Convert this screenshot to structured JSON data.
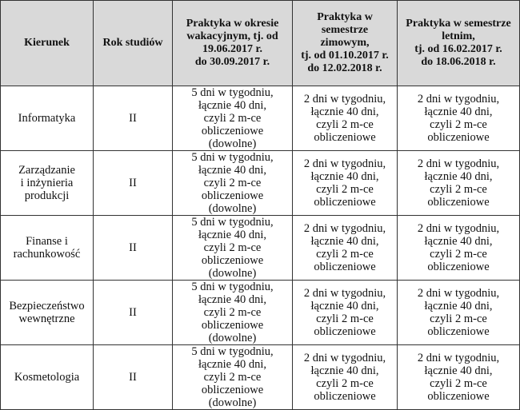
{
  "table": {
    "headers": [
      "Kierunek",
      "Rok studiów",
      "Praktyka w okresie\nwakacyjnym, tj. od\n19.06.2017 r.\ndo 30.09.2017 r.",
      "Praktyka w\nsemestrze\nzimowym,\ntj. od 01.10.2017 r.\ndo 12.02.2018 r.",
      "Praktyka w semestrze\nletnim,\ntj. od 16.02.2017 r.\ndo 18.06.2018 r."
    ],
    "header_bg": "#d9d9d9",
    "rows": [
      {
        "kierunek": "Informatyka",
        "rok": "II",
        "wakacje": "5 dni w tygodniu,\nłącznie 40 dni,\nczyli 2 m-ce\nobliczeniowe\n(dowolne)",
        "zima": "2 dni w tygodniu,\nłącznie 40 dni,\nczyli 2 m-ce\nobliczeniowe",
        "lato": "2 dni w tygodniu,\nłącznie 40 dni,\nczyli 2 m-ce\nobliczeniowe"
      },
      {
        "kierunek": "Zarządzanie\ni inżynieria\nprodukcji",
        "rok": "II",
        "wakacje": "5 dni w tygodniu,\nłącznie 40 dni,\nczyli 2 m-ce\nobliczeniowe\n(dowolne)",
        "zima": "2 dni w tygodniu,\nłącznie 40 dni,\nczyli 2 m-ce\nobliczeniowe",
        "lato": "2 dni w tygodniu,\nłącznie 40 dni,\nczyli 2 m-ce\nobliczeniowe"
      },
      {
        "kierunek": "Finanse i\nrachunkowość",
        "rok": "II",
        "wakacje": "5 dni w tygodniu,\nłącznie 40 dni,\nczyli 2 m-ce\nobliczeniowe\n(dowolne)",
        "zima": "2 dni w tygodniu,\nłącznie 40 dni,\nczyli 2 m-ce\nobliczeniowe",
        "lato": "2 dni w tygodniu,\nłącznie 40 dni,\nczyli 2 m-ce\nobliczeniowe"
      },
      {
        "kierunek": "Bezpieczeństwo\nwewnętrzne",
        "rok": "II",
        "wakacje": "5 dni w tygodniu,\nłącznie 40 dni,\nczyli 2 m-ce\nobliczeniowe\n(dowolne)",
        "zima": "2 dni w tygodniu,\nłącznie 40 dni,\nczyli 2 m-ce\nobliczeniowe",
        "lato": "2 dni w tygodniu,\nłącznie 40 dni,\nczyli 2 m-ce\nobliczeniowe"
      },
      {
        "kierunek": "Kosmetologia",
        "rok": "II",
        "wakacje": "5 dni w tygodniu,\nłącznie 40 dni,\nczyli 2 m-ce\nobliczeniowe\n(dowolne)",
        "zima": "2 dni w tygodniu,\nłącznie 40 dni,\nczyli 2 m-ce\nobliczeniowe",
        "lato": "2 dni w tygodniu,\nłącznie 40 dni,\nczyli 2 m-ce\nobliczeniowe"
      }
    ]
  }
}
